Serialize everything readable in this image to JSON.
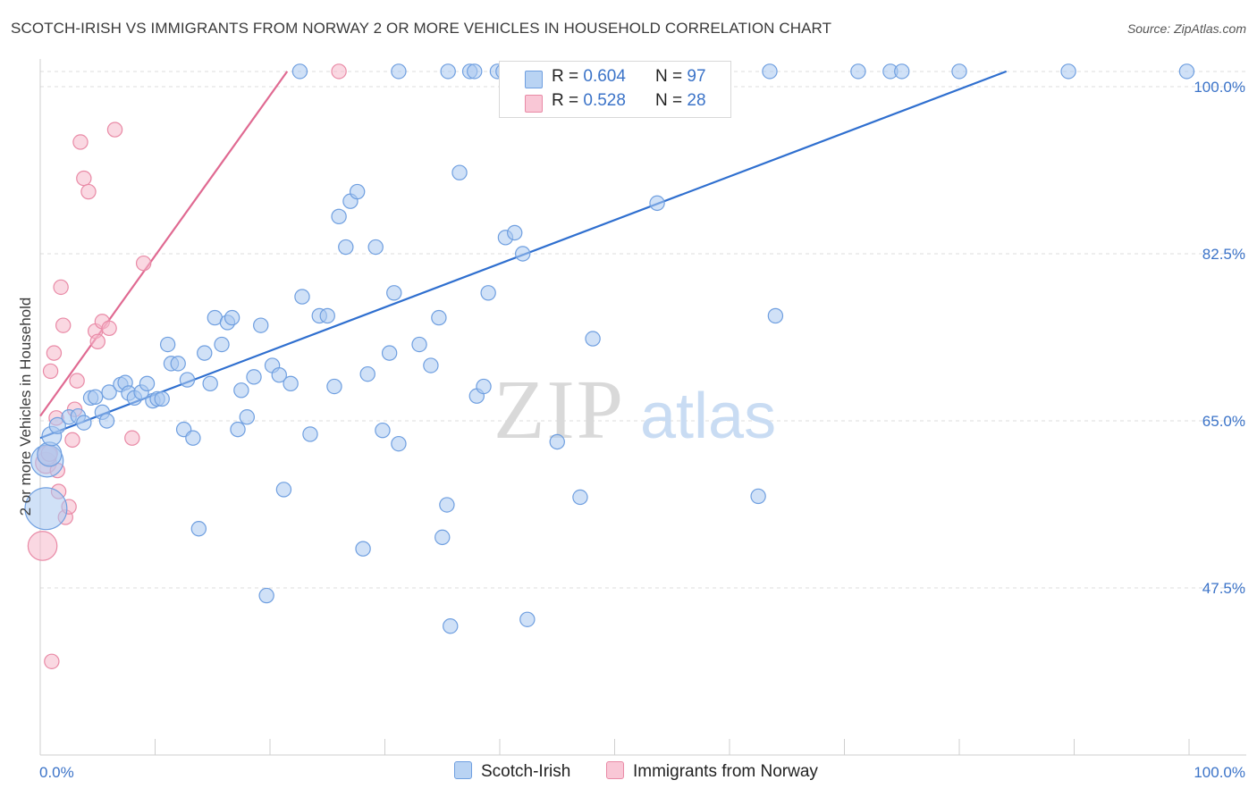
{
  "title": "SCOTCH-IRISH VS IMMIGRANTS FROM NORWAY 2 OR MORE VEHICLES IN HOUSEHOLD CORRELATION CHART",
  "source": "Source: ZipAtlas.com",
  "watermark": {
    "part1": "ZIP",
    "part2": "atlas"
  },
  "legend": {
    "rows": [
      {
        "r_label": "R = ",
        "r_value": "0.604",
        "n_label": "N = ",
        "n_value": "97"
      },
      {
        "r_label": "R = ",
        "r_value": "0.528",
        "n_label": "N = ",
        "n_value": "28"
      }
    ]
  },
  "bottom_legend": [
    "Scotch-Irish",
    "Immigrants from Norway"
  ],
  "colors": {
    "blue_fill": "#a9c8f0",
    "blue_stroke": "#6f9fe0",
    "blue_line": "#2f6fcf",
    "pink_fill": "#f6b8cb",
    "pink_stroke": "#e98aa6",
    "pink_line": "#e06a92",
    "tick_label": "#3b73c8",
    "grid": "#dcdcdc"
  },
  "chart_data": {
    "type": "scatter",
    "title": "SCOTCH-IRISH VS IMMIGRANTS FROM NORWAY 2 OR MORE VEHICLES IN HOUSEHOLD CORRELATION CHART",
    "xlabel": "",
    "ylabel": "2 or more Vehicles in Household",
    "xlim": [
      0,
      100
    ],
    "ylim": [
      31,
      102
    ],
    "x_tick_labels": [
      {
        "value": 0,
        "label": "0.0%"
      },
      {
        "value": 100,
        "label": "100.0%"
      }
    ],
    "x_minor_ticks": [
      0,
      10,
      20,
      30,
      40,
      50,
      60,
      70,
      80,
      90,
      100
    ],
    "y_ticks": [
      {
        "value": 100.0,
        "label": "100.0%"
      },
      {
        "value": 82.5,
        "label": "82.5%"
      },
      {
        "value": 65.0,
        "label": "65.0%"
      },
      {
        "value": 47.5,
        "label": "47.5%"
      }
    ],
    "grid": true,
    "legend_position": "top-center",
    "series": [
      {
        "name": "Scotch-Irish",
        "R": 0.604,
        "N": 97,
        "trend": {
          "x": [
            0,
            84.1
          ],
          "y": [
            63.2,
            101.6
          ]
        },
        "points": [
          [
            0.5,
            55.8,
            2.6
          ],
          [
            0.6,
            60.8,
            2.0
          ],
          [
            0.8,
            61.5,
            1.5
          ],
          [
            1.0,
            63.4,
            1.2
          ],
          [
            1.5,
            64.5,
            1.0
          ],
          [
            2.5,
            65.4,
            0.9
          ],
          [
            3.3,
            65.5,
            0.9
          ],
          [
            3.8,
            64.8,
            0.9
          ],
          [
            4.4,
            67.4,
            0.9
          ],
          [
            4.8,
            67.5,
            0.9
          ],
          [
            5.4,
            65.9,
            0.9
          ],
          [
            5.8,
            65.0,
            0.9
          ],
          [
            6.0,
            68.0,
            0.9
          ],
          [
            7.0,
            68.8,
            0.9
          ],
          [
            7.4,
            69.0,
            0.9
          ],
          [
            7.7,
            67.9,
            0.9
          ],
          [
            8.2,
            67.4,
            0.9
          ],
          [
            8.8,
            68.0,
            0.9
          ],
          [
            9.3,
            68.9,
            0.9
          ],
          [
            9.8,
            67.1,
            0.9
          ],
          [
            10.2,
            67.3,
            0.9
          ],
          [
            10.6,
            67.3,
            0.9
          ],
          [
            11.1,
            73.0,
            0.9
          ],
          [
            11.4,
            71.0,
            0.9
          ],
          [
            12.0,
            71.0,
            0.9
          ],
          [
            12.5,
            64.1,
            0.9
          ],
          [
            12.8,
            69.3,
            0.9
          ],
          [
            13.3,
            63.2,
            0.9
          ],
          [
            13.8,
            53.7,
            0.9
          ],
          [
            14.3,
            72.1,
            0.9
          ],
          [
            14.8,
            68.9,
            0.9
          ],
          [
            15.2,
            75.8,
            0.9
          ],
          [
            15.8,
            73.0,
            0.9
          ],
          [
            16.3,
            75.3,
            0.9
          ],
          [
            16.7,
            75.8,
            0.9
          ],
          [
            17.2,
            64.1,
            0.9
          ],
          [
            17.5,
            68.2,
            0.9
          ],
          [
            18.0,
            65.4,
            0.9
          ],
          [
            18.6,
            69.6,
            0.9
          ],
          [
            19.2,
            75.0,
            0.9
          ],
          [
            19.7,
            46.7,
            0.9
          ],
          [
            20.2,
            70.8,
            0.9
          ],
          [
            20.8,
            69.8,
            0.9
          ],
          [
            21.2,
            57.8,
            0.9
          ],
          [
            21.8,
            68.9,
            0.9
          ],
          [
            22.8,
            78.0,
            0.9
          ],
          [
            23.5,
            63.6,
            0.9
          ],
          [
            24.3,
            76.0,
            0.9
          ],
          [
            25.0,
            76.0,
            0.9
          ],
          [
            25.6,
            68.6,
            0.9
          ],
          [
            26.0,
            86.4,
            0.9
          ],
          [
            26.6,
            83.2,
            0.9
          ],
          [
            27.0,
            88.0,
            0.9
          ],
          [
            27.6,
            89.0,
            0.9
          ],
          [
            28.1,
            51.6,
            0.9
          ],
          [
            28.5,
            69.9,
            0.9
          ],
          [
            29.2,
            83.2,
            0.9
          ],
          [
            29.8,
            64.0,
            0.9
          ],
          [
            30.4,
            72.1,
            0.9
          ],
          [
            30.8,
            78.4,
            0.9
          ],
          [
            31.2,
            62.6,
            0.9
          ],
          [
            33.0,
            73.0,
            0.9
          ],
          [
            34.0,
            70.8,
            0.9
          ],
          [
            34.7,
            75.8,
            0.9
          ],
          [
            35.0,
            52.8,
            0.9
          ],
          [
            35.4,
            56.2,
            0.9
          ],
          [
            35.7,
            43.5,
            0.9
          ],
          [
            36.5,
            91.0,
            0.9
          ],
          [
            38.0,
            67.6,
            0.9
          ],
          [
            38.6,
            68.6,
            0.9
          ],
          [
            39.0,
            78.4,
            0.9
          ],
          [
            40.5,
            84.2,
            0.9
          ],
          [
            41.3,
            84.7,
            0.9
          ],
          [
            42.0,
            82.5,
            0.9
          ],
          [
            42.4,
            44.2,
            0.9
          ],
          [
            45.0,
            62.8,
            0.9
          ],
          [
            47.0,
            57.0,
            0.9
          ],
          [
            48.1,
            73.6,
            0.9
          ],
          [
            53.7,
            87.8,
            0.9
          ],
          [
            64.0,
            76.0,
            0.9
          ],
          [
            62.5,
            57.1,
            0.9
          ],
          [
            22.6,
            101.6,
            0.9
          ],
          [
            31.2,
            101.6,
            0.9
          ],
          [
            35.5,
            101.6,
            0.9
          ],
          [
            37.4,
            101.6,
            0.9
          ],
          [
            37.8,
            101.6,
            0.9
          ],
          [
            39.8,
            101.6,
            0.9
          ],
          [
            40.3,
            101.6,
            0.9
          ],
          [
            40.8,
            101.6,
            0.9
          ],
          [
            56.0,
            101.6,
            0.9
          ],
          [
            63.5,
            101.6,
            0.9
          ],
          [
            71.2,
            101.6,
            0.9
          ],
          [
            74.0,
            101.6,
            0.9
          ],
          [
            75.0,
            101.6,
            0.9
          ],
          [
            80.0,
            101.6,
            0.9
          ],
          [
            89.5,
            101.6,
            0.9
          ],
          [
            99.8,
            101.6,
            0.9
          ]
        ]
      },
      {
        "name": "Immigrants from Norway",
        "R": 0.528,
        "N": 28,
        "trend": {
          "x": [
            0,
            21.5
          ],
          "y": [
            65.5,
            101.6
          ]
        },
        "points": [
          [
            0.2,
            51.9,
            1.8
          ],
          [
            0.5,
            60.6,
            1.3
          ],
          [
            0.6,
            61.4,
            1.2
          ],
          [
            0.8,
            61.6,
            1.0
          ],
          [
            0.9,
            70.2,
            0.9
          ],
          [
            1.0,
            39.8,
            0.9
          ],
          [
            1.2,
            72.1,
            0.9
          ],
          [
            1.4,
            65.3,
            0.9
          ],
          [
            1.5,
            59.8,
            0.9
          ],
          [
            1.6,
            57.6,
            0.9
          ],
          [
            1.8,
            79.0,
            0.9
          ],
          [
            2.0,
            75.0,
            0.9
          ],
          [
            2.2,
            54.9,
            0.9
          ],
          [
            2.5,
            56.0,
            0.9
          ],
          [
            2.8,
            63.0,
            0.9
          ],
          [
            3.0,
            66.2,
            0.9
          ],
          [
            3.2,
            69.2,
            0.9
          ],
          [
            3.5,
            94.2,
            0.9
          ],
          [
            3.8,
            90.4,
            0.9
          ],
          [
            4.2,
            89.0,
            0.9
          ],
          [
            4.8,
            74.4,
            0.9
          ],
          [
            5.0,
            73.3,
            0.9
          ],
          [
            5.4,
            75.4,
            0.9
          ],
          [
            6.0,
            74.7,
            0.9
          ],
          [
            6.5,
            95.5,
            0.9
          ],
          [
            8.0,
            63.2,
            0.9
          ],
          [
            9.0,
            81.5,
            0.9
          ],
          [
            26.0,
            101.6,
            0.9
          ]
        ]
      }
    ]
  }
}
